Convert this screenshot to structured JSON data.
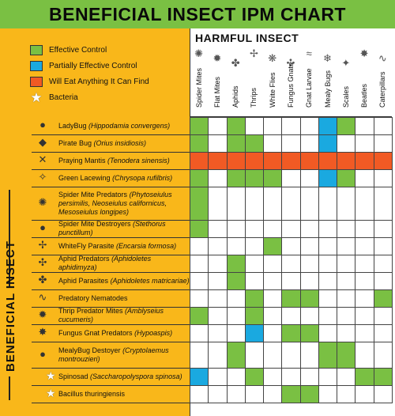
{
  "title": "BENEFICIAL INSECT IPM CHART",
  "harmful_label": "HARMFUL INSECT",
  "beneficial_label": "BENEFICIAL INSECT",
  "colors": {
    "E": "#7ac043",
    "P": "#1aa9e0",
    "A": "#f15a24",
    "panel": "#f9b71a"
  },
  "legend": [
    {
      "key": "E",
      "label": "Effective Control"
    },
    {
      "key": "P",
      "label": "Partially Effective Control"
    },
    {
      "key": "A",
      "label": "Will Eat Anything It Can Find"
    },
    {
      "key": "B",
      "label": "Bacteria"
    }
  ],
  "columns": [
    {
      "label": "Spider Mites",
      "icon": "spider-mite-icon"
    },
    {
      "label": "Flat Mites",
      "icon": "flat-mite-icon"
    },
    {
      "label": "Aphids",
      "icon": "aphid-icon"
    },
    {
      "label": "Thrips",
      "icon": "thrip-icon"
    },
    {
      "label": "White Flies",
      "icon": "white-fly-icon"
    },
    {
      "label": "Fungus Gnats",
      "icon": "fungus-gnat-icon"
    },
    {
      "label": "Gnat Larvae",
      "icon": "gnat-larva-icon"
    },
    {
      "label": "Mealy Bugs",
      "icon": "mealy-bug-icon"
    },
    {
      "label": "Scales",
      "icon": "scale-icon"
    },
    {
      "label": "Beatles",
      "icon": "beetle-icon"
    },
    {
      "label": "Caterpillars",
      "icon": "caterpillar-icon"
    }
  ],
  "rows": [
    {
      "name": "LadyBug",
      "sci": "(Hippodamia convergens)",
      "bacteria": false,
      "icon": "ladybug-icon",
      "cells": [
        "E",
        "",
        "E",
        "",
        "",
        "",
        "",
        "P",
        "E",
        "",
        ""
      ]
    },
    {
      "name": "Pirate Bug",
      "sci": "(Orius insidiosis)",
      "bacteria": false,
      "icon": "pirate-bug-icon",
      "cells": [
        "E",
        "",
        "E",
        "E",
        "",
        "",
        "",
        "P",
        "",
        "",
        ""
      ]
    },
    {
      "name": "Praying Mantis",
      "sci": "(Tenodera sinensis)",
      "bacteria": false,
      "icon": "praying-mantis-icon",
      "cells": [
        "A",
        "A",
        "A",
        "A",
        "A",
        "A",
        "A",
        "A",
        "A",
        "A",
        "A"
      ]
    },
    {
      "name": "Green Lacewing",
      "sci": "(Chrysopa rufilbris)",
      "bacteria": false,
      "icon": "lacewing-icon",
      "cells": [
        "E",
        "",
        "E",
        "E",
        "E",
        "",
        "",
        "P",
        "E",
        "",
        ""
      ]
    },
    {
      "name": "Spider Mite Predators",
      "sci": "(Phytoseiulus persimilis, Neoseiulus californicus, Mesoseiulus longipes)",
      "bacteria": false,
      "icon": "spider-mite-predator-icon",
      "cells": [
        "E",
        "",
        "",
        "",
        "",
        "",
        "",
        "",
        "",
        "",
        ""
      ]
    },
    {
      "name": "Spider Mite Destroyers",
      "sci": "(Stethorus punctillum)",
      "bacteria": false,
      "icon": "mite-destroyer-icon",
      "cells": [
        "E",
        "",
        "",
        "",
        "",
        "",
        "",
        "",
        "",
        "",
        ""
      ]
    },
    {
      "name": "WhiteFly Parasite",
      "sci": "(Encarsia formosa)",
      "bacteria": false,
      "icon": "whitefly-parasite-icon",
      "cells": [
        "",
        "",
        "",
        "",
        "E",
        "",
        "",
        "",
        "",
        "",
        ""
      ]
    },
    {
      "name": "Aphid Predators",
      "sci": "(Aphidoletes aphidimyza)",
      "bacteria": false,
      "icon": "aphid-predator-icon",
      "cells": [
        "",
        "",
        "E",
        "",
        "",
        "",
        "",
        "",
        "",
        "",
        ""
      ]
    },
    {
      "name": "Aphid Parasites",
      "sci": "(Aphidoletes matricariae)",
      "bacteria": false,
      "icon": "aphid-parasite-icon",
      "cells": [
        "",
        "",
        "E",
        "",
        "",
        "",
        "",
        "",
        "",
        "",
        ""
      ]
    },
    {
      "name": "Predatory Nematodes",
      "sci": "",
      "bacteria": false,
      "icon": "nematode-icon",
      "cells": [
        "",
        "",
        "",
        "E",
        "",
        "E",
        "E",
        "",
        "",
        "",
        "E"
      ]
    },
    {
      "name": "Thrip Predator Mites",
      "sci": "(Amblyseius cucumeris)",
      "bacteria": false,
      "icon": "thrip-predator-icon",
      "cells": [
        "E",
        "",
        "",
        "E",
        "",
        "",
        "",
        "",
        "",
        "",
        ""
      ]
    },
    {
      "name": "Fungus Gnat Predators",
      "sci": "(Hypoaspis)",
      "bacteria": false,
      "icon": "gnat-predator-icon",
      "cells": [
        "",
        "",
        "",
        "P",
        "",
        "E",
        "E",
        "",
        "",
        "",
        ""
      ]
    },
    {
      "name": "MealyBug Destoyer",
      "sci": "(Cryptolaemus montrouzieri)",
      "bacteria": false,
      "icon": "mealybug-destroyer-icon",
      "cells": [
        "",
        "",
        "E",
        "",
        "",
        "",
        "",
        "E",
        "E",
        "",
        ""
      ]
    },
    {
      "name": "Spinosad",
      "sci": "(Saccharopolyspora spinosa)",
      "bacteria": true,
      "icon": "",
      "cells": [
        "P",
        "",
        "",
        "E",
        "",
        "",
        "",
        "",
        "",
        "E",
        "E"
      ]
    },
    {
      "name": "Bacillus thuringiensis",
      "sci": "",
      "bacteria": true,
      "icon": "",
      "cells": [
        "",
        "",
        "",
        "",
        "",
        "E",
        "E",
        "",
        "",
        "",
        ""
      ]
    }
  ]
}
